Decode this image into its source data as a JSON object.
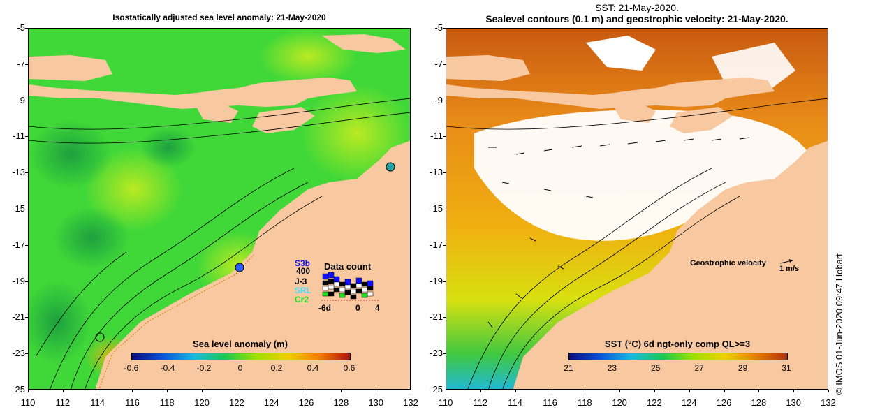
{
  "left_panel": {
    "title": "Isostatically adjusted sea level anomaly: 21-May-2020",
    "colorbar": {
      "title": "Sea level anomaly (m)",
      "ticks": [
        "-0.6",
        "-0.4",
        "-0.2",
        "0",
        "0.2",
        "0.4",
        "0.6"
      ],
      "colors": [
        "#0a0a7a",
        "#0a55d8",
        "#1ab8e0",
        "#18c850",
        "#9ee000",
        "#f0d000",
        "#f08000",
        "#b01010"
      ]
    },
    "data_count": {
      "title": "Data count",
      "missions": [
        {
          "name": "S3b",
          "color": "#1010ff"
        },
        {
          "name": "400",
          "color": "#000000"
        },
        {
          "name": "J-3",
          "color": "#000000"
        },
        {
          "name": "SRL",
          "color": "#40e0ff"
        },
        {
          "name": "Cr2",
          "color": "#20e020"
        }
      ],
      "axis_ticks": [
        "-6d",
        "0",
        "4"
      ]
    }
  },
  "right_panel": {
    "title_line1": "SST: 21-May-2020.",
    "title_line2": "Sealevel contours (0.1 m) and geostrophic velocity: 21-May-2020.",
    "colorbar": {
      "title": "SST (°C) 6d ngt-only comp QL>=3",
      "ticks": [
        "21",
        "23",
        "25",
        "27",
        "29",
        "31"
      ],
      "colors": [
        "#0a0a7a",
        "#0a55d8",
        "#1ab8e0",
        "#18c850",
        "#9ee000",
        "#f0d000",
        "#e08000",
        "#b03010"
      ]
    },
    "velocity_label": "Geostrophic velocity",
    "velocity_unit": "1 m/s"
  },
  "axes": {
    "y_ticks": [
      "-5",
      "-7",
      "-9",
      "-11",
      "-13",
      "-15",
      "-17",
      "-19",
      "-21",
      "-23",
      "-25"
    ],
    "x_ticks": [
      "110",
      "112",
      "114",
      "116",
      "118",
      "120",
      "122",
      "124",
      "126",
      "128",
      "130",
      "132"
    ]
  },
  "credit": "© IMOS 01-Jun-2020 09:47 Hobart",
  "colors": {
    "land": "#f8c8a0",
    "ocean_green": "#40d838",
    "sst_orange": "#e88a18"
  }
}
